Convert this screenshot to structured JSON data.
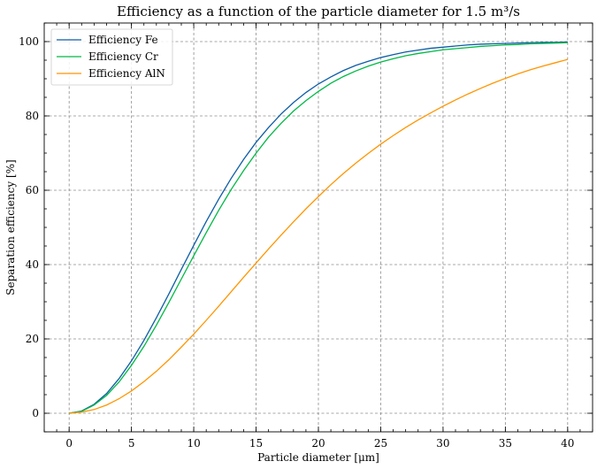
{
  "chart_data": {
    "type": "line",
    "title": "Efficiency as a function of the particle diameter for 1.5 m³/s",
    "xlabel": "Particle diameter [μm]",
    "ylabel": "Separation efficiency [%]",
    "xlim": [
      -2,
      42
    ],
    "ylim": [
      -5,
      105
    ],
    "xticks": [
      0,
      5,
      10,
      15,
      20,
      25,
      30,
      35,
      40
    ],
    "yticks": [
      0,
      20,
      40,
      60,
      80,
      100
    ],
    "grid": true,
    "legend_position": "top-left",
    "x": [
      0,
      1,
      2,
      3,
      4,
      5,
      6,
      7,
      8,
      9,
      10,
      11,
      12,
      13,
      14,
      15,
      16,
      17,
      18,
      19,
      20,
      21,
      22,
      23,
      24,
      25,
      26,
      27,
      28,
      29,
      30,
      31,
      32,
      33,
      34,
      35,
      36,
      37,
      38,
      39,
      40
    ],
    "series": [
      {
        "name": "Efficiency Fe",
        "color": "#0c5da5",
        "values": [
          0.0,
          0.6,
          2.4,
          5.3,
          9.3,
          14.1,
          19.6,
          25.7,
          32.1,
          38.7,
          45.2,
          51.6,
          57.6,
          63.2,
          68.3,
          72.9,
          76.9,
          80.5,
          83.6,
          86.3,
          88.6,
          90.5,
          92.2,
          93.6,
          94.7,
          95.7,
          96.5,
          97.2,
          97.7,
          98.2,
          98.5,
          98.8,
          99.1,
          99.3,
          99.4,
          99.5,
          99.6,
          99.7,
          99.8,
          99.8,
          99.9
        ]
      },
      {
        "name": "Efficiency Cr",
        "color": "#00b945",
        "values": [
          0.0,
          0.5,
          2.2,
          4.8,
          8.4,
          12.9,
          18.0,
          23.7,
          29.8,
          36.1,
          42.4,
          48.6,
          54.6,
          60.2,
          65.3,
          70.0,
          74.3,
          78.0,
          81.3,
          84.1,
          86.6,
          88.8,
          90.6,
          92.1,
          93.4,
          94.5,
          95.4,
          96.2,
          96.8,
          97.3,
          97.8,
          98.1,
          98.4,
          98.7,
          98.9,
          99.1,
          99.2,
          99.4,
          99.5,
          99.6,
          99.7
        ]
      },
      {
        "name": "Efficiency AlN",
        "color": "#ff9500",
        "values": [
          0.0,
          0.3,
          1.0,
          2.2,
          3.9,
          6.0,
          8.5,
          11.3,
          14.4,
          17.8,
          21.3,
          25.0,
          28.8,
          32.7,
          36.6,
          40.4,
          44.2,
          47.9,
          51.5,
          55.0,
          58.3,
          61.5,
          64.5,
          67.3,
          69.9,
          72.4,
          74.7,
          76.9,
          78.9,
          80.8,
          82.6,
          84.3,
          85.9,
          87.4,
          88.8,
          90.1,
          91.3,
          92.4,
          93.4,
          94.3,
          95.2
        ]
      }
    ]
  }
}
